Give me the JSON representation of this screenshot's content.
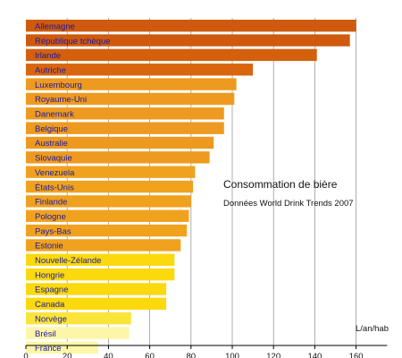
{
  "chart_data": {
    "type": "bar",
    "orientation": "horizontal",
    "title": "Consommation de bière",
    "subtitle": "Données World Drink Trends 2007",
    "xlabel": "L/an/hab",
    "ylabel": "",
    "xlim": [
      0,
      175
    ],
    "x_ticks": [
      0,
      20,
      40,
      60,
      80,
      100,
      120,
      140,
      160
    ],
    "grid": true,
    "categories": [
      "Allemagne",
      "République tchèque",
      "Irlande",
      "Autriche",
      "Luxembourg",
      "Royaume-Uni",
      "Danemark",
      "Belgique",
      "Australie",
      "Slovaquie",
      "Venezuela",
      "États-Unis",
      "Finlande",
      "Pologne",
      "Pays-Bas",
      "Estonie",
      "Nouvelle-Zélande",
      "Hongrie",
      "Espagne",
      "Canada",
      "Norvège",
      "Brésil",
      "France"
    ],
    "values": [
      160,
      157,
      141,
      110,
      102,
      101,
      96,
      96,
      91,
      89,
      82,
      81,
      80,
      79,
      78,
      75,
      72,
      72,
      68,
      68,
      51,
      50,
      35
    ],
    "colors": [
      "#cf5a0e",
      "#cf5a0e",
      "#d4600e",
      "#d9650f",
      "#ee9a20",
      "#ee9a20",
      "#ee9a20",
      "#ee9a20",
      "#ee9a20",
      "#ee9a20",
      "#f0a21e",
      "#f0a21e",
      "#f0a21e",
      "#f0a21e",
      "#f0a21e",
      "#f0a21e",
      "#fbd90c",
      "#fbd90c",
      "#fbd90c",
      "#fbd90c",
      "#fbe43a",
      "#fdf6a8",
      "#fdf6a8"
    ],
    "label_colors": [
      "#1a1aa0",
      "#1a1aa0",
      "#1a1aa0",
      "#1a1aa0",
      "#1a1aa0",
      "#1a1aa0",
      "#1a1aa0",
      "#1a1aa0",
      "#1a1aa0",
      "#1a1aa0",
      "#1a1aa0",
      "#1a1aa0",
      "#1a1aa0",
      "#1a1aa0",
      "#1a1aa0",
      "#1a1aa0",
      "#1a1aa0",
      "#1a1aa0",
      "#1a1aa0",
      "#1a1aa0",
      "#1a1aa0",
      "#1a1aa0",
      "#1a1aa0"
    ]
  }
}
